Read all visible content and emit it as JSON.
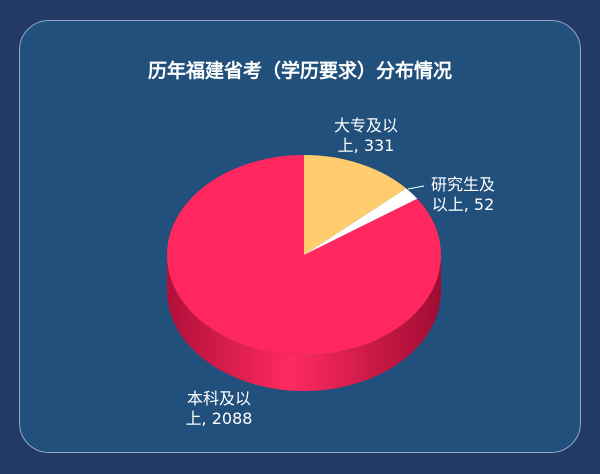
{
  "chart_data": {
    "type": "pie",
    "title": "历年福建省考（学历要求）分布情况",
    "values": [
      331,
      52,
      2088
    ],
    "value_labels": [
      "大专及以上, 331",
      "研究生及以上, 52",
      "本科及以上, 2088"
    ],
    "colors": [
      "#ffcc6e",
      "#ffffff",
      "#ff275e"
    ]
  }
}
